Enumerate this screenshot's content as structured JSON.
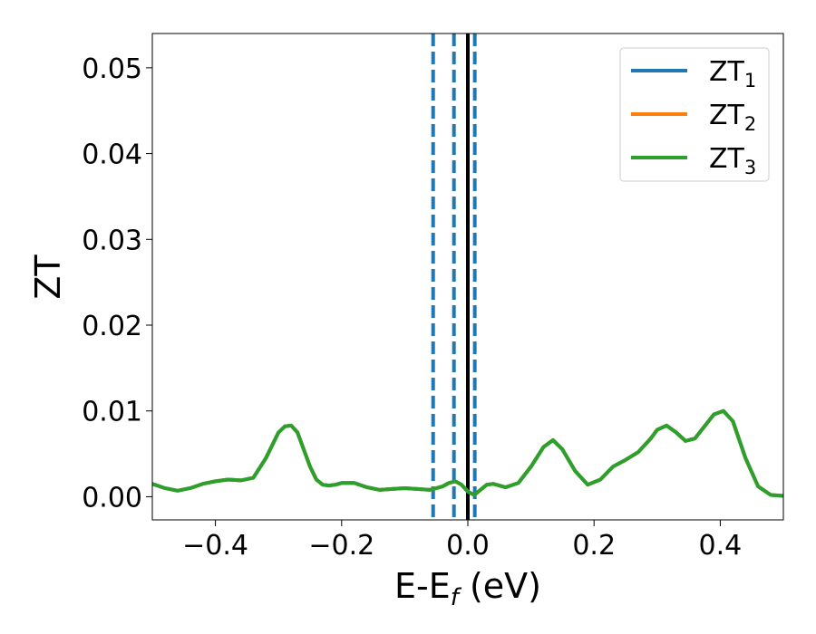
{
  "chart_data": {
    "type": "line",
    "xlabel": "E-E",
    "xlabel_sub": "f",
    "xlabel_unit": " (eV)",
    "ylabel": "ZT",
    "xlim": [
      -0.5,
      0.5
    ],
    "ylim": [
      -0.0027,
      0.054
    ],
    "xticks": [
      -0.4,
      -0.2,
      0.0,
      0.2,
      0.4
    ],
    "xtick_labels": [
      "−0.4",
      "−0.2",
      "0.0",
      "0.2",
      "0.4"
    ],
    "yticks": [
      0.0,
      0.01,
      0.02,
      0.03,
      0.04,
      0.05
    ],
    "ytick_labels": [
      "0.00",
      "0.01",
      "0.02",
      "0.03",
      "0.04",
      "0.05"
    ],
    "grid": false,
    "legend_position": "top-right",
    "series": [
      {
        "name": "ZT",
        "name_sub": "1",
        "color": "#1f77b4",
        "x": [
          -0.5,
          -0.48,
          -0.46,
          -0.44,
          -0.42,
          -0.4,
          -0.38,
          -0.36,
          -0.34,
          -0.32,
          -0.3,
          -0.29,
          -0.28,
          -0.27,
          -0.26,
          -0.25,
          -0.24,
          -0.23,
          -0.22,
          -0.21,
          -0.2,
          -0.18,
          -0.16,
          -0.14,
          -0.12,
          -0.1,
          -0.08,
          -0.06,
          -0.04,
          -0.03,
          -0.02,
          -0.01,
          0.0,
          0.01,
          0.02,
          0.03,
          0.04,
          0.06,
          0.08,
          0.1,
          0.12,
          0.135,
          0.15,
          0.17,
          0.19,
          0.21,
          0.23,
          0.25,
          0.27,
          0.29,
          0.3,
          0.315,
          0.33,
          0.345,
          0.36,
          0.375,
          0.39,
          0.405,
          0.42,
          0.44,
          0.46,
          0.48,
          0.5
        ],
        "values": [
          0.0015,
          0.001,
          0.0007,
          0.001,
          0.0015,
          0.0018,
          0.002,
          0.0019,
          0.0022,
          0.0045,
          0.0075,
          0.0082,
          0.0083,
          0.0075,
          0.0055,
          0.0035,
          0.002,
          0.0014,
          0.0013,
          0.0014,
          0.0016,
          0.0016,
          0.0011,
          0.0008,
          0.0009,
          0.001,
          0.0009,
          0.0008,
          0.0012,
          0.0016,
          0.0018,
          0.0014,
          0.0006,
          0.0002,
          0.0008,
          0.0014,
          0.0015,
          0.0011,
          0.0016,
          0.0035,
          0.0058,
          0.0066,
          0.0055,
          0.003,
          0.0014,
          0.002,
          0.0035,
          0.0043,
          0.0052,
          0.0068,
          0.0078,
          0.0083,
          0.0075,
          0.0065,
          0.0068,
          0.0082,
          0.0096,
          0.01,
          0.0088,
          0.0045,
          0.0012,
          0.0002,
          0.0001
        ]
      },
      {
        "name": "ZT",
        "name_sub": "2",
        "color": "#ff7f0e",
        "x": [
          -0.5,
          -0.48,
          -0.46,
          -0.44,
          -0.42,
          -0.4,
          -0.38,
          -0.36,
          -0.34,
          -0.32,
          -0.3,
          -0.29,
          -0.28,
          -0.27,
          -0.26,
          -0.25,
          -0.24,
          -0.23,
          -0.22,
          -0.21,
          -0.2,
          -0.18,
          -0.16,
          -0.14,
          -0.12,
          -0.1,
          -0.08,
          -0.06,
          -0.04,
          -0.03,
          -0.02,
          -0.01,
          0.0,
          0.01,
          0.02,
          0.03,
          0.04,
          0.06,
          0.08,
          0.1,
          0.12,
          0.135,
          0.15,
          0.17,
          0.19,
          0.21,
          0.23,
          0.25,
          0.27,
          0.29,
          0.3,
          0.315,
          0.33,
          0.345,
          0.36,
          0.375,
          0.39,
          0.405,
          0.42,
          0.44,
          0.46,
          0.48,
          0.5
        ],
        "values": [
          0.0015,
          0.001,
          0.0007,
          0.001,
          0.0015,
          0.0018,
          0.002,
          0.0019,
          0.0022,
          0.0045,
          0.0075,
          0.0082,
          0.0083,
          0.0075,
          0.0055,
          0.0035,
          0.002,
          0.0014,
          0.0013,
          0.0014,
          0.0016,
          0.0016,
          0.0011,
          0.0008,
          0.0009,
          0.001,
          0.0009,
          0.0008,
          0.0012,
          0.0016,
          0.0018,
          0.0014,
          0.0006,
          0.0002,
          0.0008,
          0.0014,
          0.0015,
          0.0011,
          0.0016,
          0.0035,
          0.0058,
          0.0066,
          0.0055,
          0.003,
          0.0014,
          0.002,
          0.0035,
          0.0043,
          0.0052,
          0.0068,
          0.0078,
          0.0083,
          0.0075,
          0.0065,
          0.0068,
          0.0082,
          0.0096,
          0.01,
          0.0088,
          0.0045,
          0.0012,
          0.0002,
          0.0001
        ]
      },
      {
        "name": "ZT",
        "name_sub": "3",
        "color": "#2ca02c",
        "x": [
          -0.5,
          -0.48,
          -0.46,
          -0.44,
          -0.42,
          -0.4,
          -0.38,
          -0.36,
          -0.34,
          -0.32,
          -0.3,
          -0.29,
          -0.28,
          -0.27,
          -0.26,
          -0.25,
          -0.24,
          -0.23,
          -0.22,
          -0.21,
          -0.2,
          -0.18,
          -0.16,
          -0.14,
          -0.12,
          -0.1,
          -0.08,
          -0.06,
          -0.04,
          -0.03,
          -0.02,
          -0.01,
          0.0,
          0.01,
          0.02,
          0.03,
          0.04,
          0.06,
          0.08,
          0.1,
          0.12,
          0.135,
          0.15,
          0.17,
          0.19,
          0.21,
          0.23,
          0.25,
          0.27,
          0.29,
          0.3,
          0.315,
          0.33,
          0.345,
          0.36,
          0.375,
          0.39,
          0.405,
          0.42,
          0.44,
          0.46,
          0.48,
          0.5
        ],
        "values": [
          0.0015,
          0.001,
          0.0007,
          0.001,
          0.0015,
          0.0018,
          0.002,
          0.0019,
          0.0022,
          0.0045,
          0.0075,
          0.0082,
          0.0083,
          0.0075,
          0.0055,
          0.0035,
          0.002,
          0.0014,
          0.0013,
          0.0014,
          0.0016,
          0.0016,
          0.0011,
          0.0008,
          0.0009,
          0.001,
          0.0009,
          0.0008,
          0.0012,
          0.0016,
          0.0018,
          0.0014,
          0.0006,
          0.0002,
          0.0008,
          0.0014,
          0.0015,
          0.0011,
          0.0016,
          0.0035,
          0.0058,
          0.0066,
          0.0055,
          0.003,
          0.0014,
          0.002,
          0.0035,
          0.0043,
          0.0052,
          0.0068,
          0.0078,
          0.0083,
          0.0075,
          0.0065,
          0.0068,
          0.0082,
          0.0096,
          0.01,
          0.0088,
          0.0045,
          0.0012,
          0.0002,
          0.0001
        ]
      }
    ],
    "vertical_lines": [
      {
        "x": -0.055,
        "style": "dashed",
        "color": "#1f77b4"
      },
      {
        "x": -0.022,
        "style": "dashed",
        "color": "#1f77b4"
      },
      {
        "x": 0.011,
        "style": "dashed",
        "color": "#1f77b4"
      },
      {
        "x": 0.0,
        "style": "solid",
        "color": "#000000"
      }
    ]
  }
}
